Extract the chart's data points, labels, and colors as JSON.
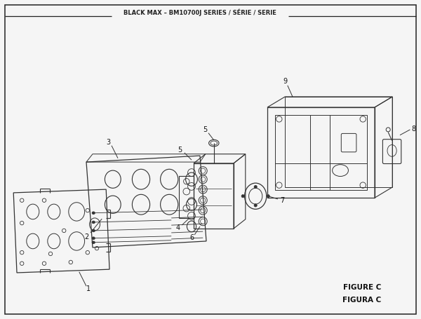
{
  "title": "BLACK MAX – BM10700J SERIES / SÉRIE / SERIE",
  "figure_label": "FIGURE C",
  "figura_label": "FIGURA C",
  "bg_color": "#f5f5f5",
  "border_color": "#222222",
  "line_color": "#333333",
  "text_color": "#111111"
}
